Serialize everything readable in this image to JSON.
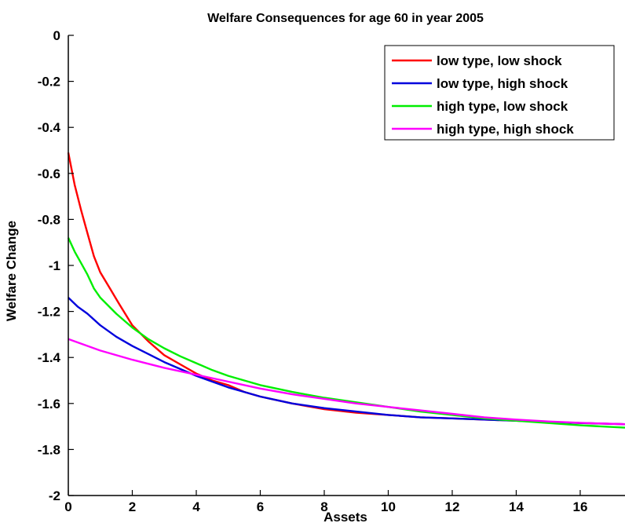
{
  "chart_data": {
    "type": "line",
    "title": "Welfare Consequences for age 60 in year 2005",
    "xlabel": "Assets",
    "ylabel": "Welfare Change",
    "xlim": [
      0,
      17.4
    ],
    "ylim": [
      -2,
      0
    ],
    "xticks": [
      0,
      2,
      4,
      6,
      8,
      10,
      12,
      14,
      16
    ],
    "yticks": [
      0,
      -0.2,
      -0.4,
      -0.6,
      -0.8,
      -1,
      -1.2,
      -1.4,
      -1.6,
      -1.8,
      -2
    ],
    "xtick_labels": [
      "0",
      "2",
      "4",
      "6",
      "8",
      "10",
      "12",
      "14",
      "16"
    ],
    "ytick_labels": [
      "0",
      "-0.2",
      "-0.4",
      "-0.6",
      "-0.8",
      "-1",
      "-1.2",
      "-1.4",
      "-1.6",
      "-1.8",
      "-2"
    ],
    "grid": false,
    "legend_position": "top-right",
    "series": [
      {
        "name": "low type, low shock",
        "color": "#ff0000",
        "x": [
          0,
          0.2,
          0.4,
          0.6,
          0.8,
          1.0,
          1.3,
          1.6,
          2.0,
          2.5,
          3.0,
          3.5,
          4.0,
          4.5,
          5.0,
          5.5,
          6.0,
          7.0,
          8.0,
          9.0,
          10.0,
          11.0,
          12.0,
          13.0,
          14.0,
          15.0,
          16.0,
          17.4
        ],
        "y": [
          -0.51,
          -0.65,
          -0.76,
          -0.86,
          -0.96,
          -1.03,
          -1.1,
          -1.17,
          -1.26,
          -1.33,
          -1.39,
          -1.43,
          -1.47,
          -1.5,
          -1.52,
          -1.55,
          -1.57,
          -1.6,
          -1.625,
          -1.64,
          -1.65,
          -1.66,
          -1.665,
          -1.67,
          -1.675,
          -1.68,
          -1.685,
          -1.69
        ]
      },
      {
        "name": "low type, high shock",
        "color": "#0000dd",
        "x": [
          0,
          0.3,
          0.6,
          1.0,
          1.5,
          2.0,
          2.5,
          3.0,
          3.5,
          4.0,
          4.5,
          5.0,
          5.5,
          6.0,
          7.0,
          8.0,
          9.0,
          10.0,
          11.0,
          12.0,
          13.0,
          14.0,
          15.0,
          16.0,
          17.4
        ],
        "y": [
          -1.14,
          -1.18,
          -1.21,
          -1.26,
          -1.31,
          -1.35,
          -1.385,
          -1.42,
          -1.45,
          -1.48,
          -1.505,
          -1.53,
          -1.55,
          -1.57,
          -1.6,
          -1.62,
          -1.635,
          -1.65,
          -1.66,
          -1.665,
          -1.67,
          -1.675,
          -1.68,
          -1.685,
          -1.69
        ]
      },
      {
        "name": "high type, low shock",
        "color": "#00ee00",
        "x": [
          0,
          0.2,
          0.4,
          0.6,
          0.8,
          1.0,
          1.5,
          2.0,
          2.5,
          3.0,
          3.5,
          4.0,
          4.5,
          5.0,
          5.5,
          6.0,
          7.0,
          8.0,
          9.0,
          10.0,
          11.0,
          12.0,
          13.0,
          14.0,
          15.0,
          16.0,
          17.4
        ],
        "y": [
          -0.88,
          -0.94,
          -0.99,
          -1.04,
          -1.1,
          -1.14,
          -1.21,
          -1.27,
          -1.32,
          -1.36,
          -1.395,
          -1.425,
          -1.455,
          -1.48,
          -1.5,
          -1.52,
          -1.55,
          -1.575,
          -1.595,
          -1.615,
          -1.635,
          -1.65,
          -1.665,
          -1.675,
          -1.685,
          -1.695,
          -1.705
        ]
      },
      {
        "name": "high type, high shock",
        "color": "#ff00ff",
        "x": [
          0,
          1.0,
          2.0,
          3.0,
          4.0,
          5.0,
          6.0,
          7.0,
          8.0,
          9.0,
          10.0,
          11.0,
          12.0,
          13.0,
          14.0,
          15.0,
          16.0,
          17.4
        ],
        "y": [
          -1.32,
          -1.37,
          -1.41,
          -1.445,
          -1.475,
          -1.505,
          -1.535,
          -1.56,
          -1.58,
          -1.6,
          -1.615,
          -1.63,
          -1.645,
          -1.66,
          -1.67,
          -1.678,
          -1.684,
          -1.69
        ]
      }
    ]
  }
}
